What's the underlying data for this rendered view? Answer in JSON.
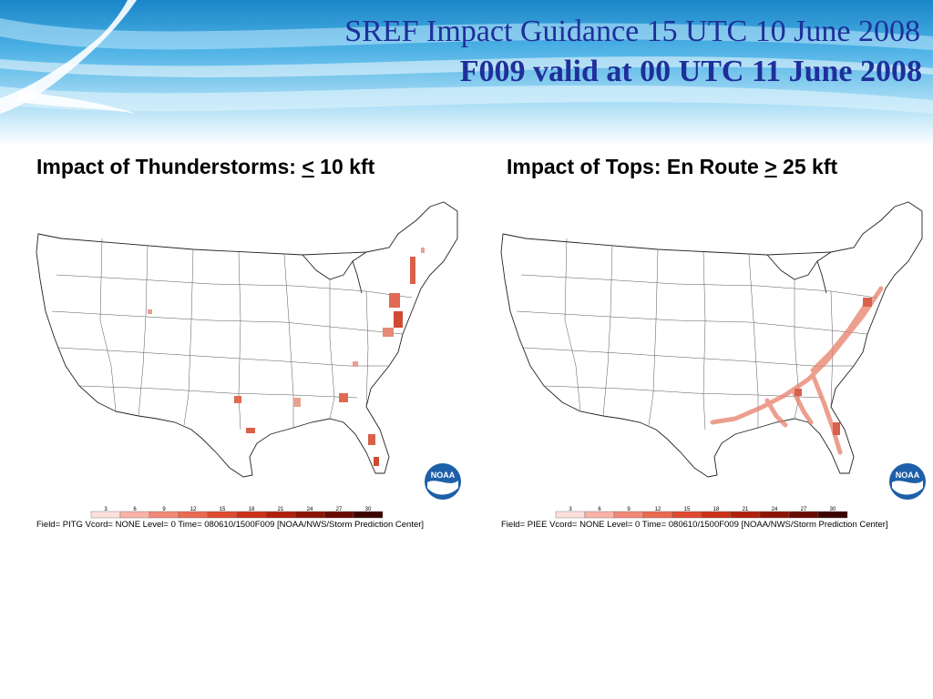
{
  "header": {
    "title_line1": "SREF Impact Guidance 15 UTC 10 June 2008",
    "title_line2": "F009 valid at 00 UTC 11 June 2008"
  },
  "panels": [
    {
      "title_prefix": "Impact of Thunderstorms: ",
      "title_symbol": "<",
      "title_suffix": " 10 kft",
      "field_text": "Field= PITG Vcord= NONE Level= 0 Time= 080610/1500F009 [NOAA/NWS/Storm Prediction Center]",
      "logo_text": "NOAA",
      "legend_values": [
        "3",
        "6",
        "9",
        "12",
        "15",
        "18",
        "21",
        "24",
        "27",
        "30"
      ]
    },
    {
      "title_prefix": "Impact of Tops: En Route ",
      "title_symbol": ">",
      "title_suffix": " 25 kft",
      "field_text": "Field= PIEE Vcord= NONE Level= 0 Time= 080610/1500F009 [NOAA/NWS/Storm Prediction Center]",
      "logo_text": "NOAA",
      "legend_values": [
        "3",
        "6",
        "9",
        "12",
        "15",
        "18",
        "21",
        "24",
        "27",
        "30"
      ]
    }
  ],
  "legend_colors": [
    "#fde0dc",
    "#f9b3a6",
    "#f38a77",
    "#ec6a52",
    "#e04a2f",
    "#cc3118",
    "#b0200c",
    "#8e1406",
    "#6a0b03",
    "#3c0401"
  ]
}
